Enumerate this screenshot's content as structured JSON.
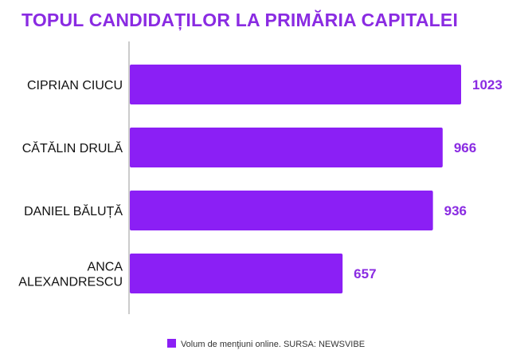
{
  "chart_data": {
    "type": "bar",
    "orientation": "horizontal",
    "title": "TOPUL CANDIDAȚILOR LA PRIMĂRIA CAPITALEI",
    "categories": [
      "CIPRIAN CIUCU",
      "CĂTĂLIN DRULĂ",
      "DANIEL BĂLUȚĂ",
      "ANCA ALEXANDRESCU"
    ],
    "category_lines": [
      [
        "CIPRIAN CIUCU"
      ],
      [
        "CĂTĂLIN DRULĂ"
      ],
      [
        "DANIEL BĂLUȚĂ"
      ],
      [
        "ANCA",
        "ALEXANDRESCU"
      ]
    ],
    "series": [
      {
        "name": "Volum de menţiuni online. SURSA: NEWSVIBE",
        "values": [
          1023,
          966,
          936,
          657
        ]
      }
    ],
    "value_labels": [
      "1023",
      "966",
      "936",
      "657"
    ],
    "legend_position": "bottom-center",
    "grid": false,
    "xlim": [
      0,
      1023
    ],
    "colors": {
      "bar": "#8b1ff5",
      "title": "#8a2be2",
      "value_label": "#8a2be2",
      "axis": "#999999"
    }
  }
}
